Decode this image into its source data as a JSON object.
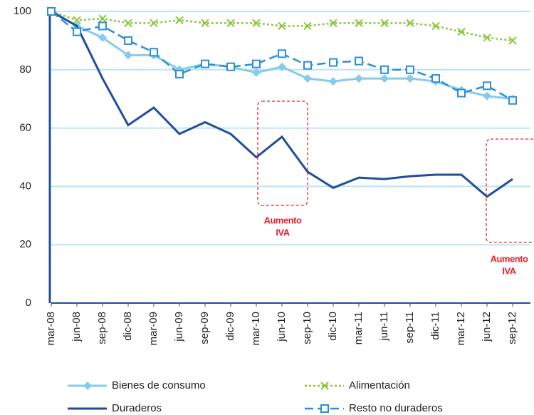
{
  "chart_data": {
    "type": "line",
    "categories": [
      "mar-08",
      "jun-08",
      "sep-08",
      "dic-08",
      "mar-09",
      "jun-09",
      "sep-09",
      "dic-09",
      "mar-10",
      "jun-10",
      "sep-10",
      "dic-10",
      "mar-11",
      "jun-11",
      "sep-11",
      "dic-11",
      "mar-12",
      "jun-12",
      "sep-12"
    ],
    "series": [
      {
        "name": "Bienes de consumo",
        "color": "#84cbec",
        "marker": "diamond",
        "dash": false,
        "values": [
          100,
          95,
          91,
          85,
          85,
          80,
          82,
          81,
          79,
          81,
          77,
          76,
          77,
          77,
          77,
          76,
          73,
          71,
          70
        ]
      },
      {
        "name": "Alimentación",
        "color": "#8cc63f",
        "marker": "x",
        "dash": true,
        "values": [
          100,
          97,
          97.5,
          96,
          96,
          97,
          96,
          96,
          96,
          95,
          95,
          96,
          96,
          96,
          96,
          95,
          93,
          91,
          90
        ]
      },
      {
        "name": "Duraderos",
        "color": "#1f4e9c",
        "marker": "none",
        "dash": false,
        "values": [
          100,
          95,
          77,
          61,
          67,
          58,
          62,
          58,
          50,
          57,
          45,
          39.5,
          43,
          42.5,
          43.5,
          44,
          44,
          36.5,
          42.5
        ]
      },
      {
        "name": "Resto no duraderos",
        "color": "#2a8fd8",
        "marker": "square",
        "dash": true,
        "values": [
          100,
          93,
          95,
          90,
          86,
          78.5,
          82,
          81,
          82,
          85.5,
          81.5,
          82.5,
          83,
          80,
          80,
          77,
          72,
          74.5,
          69.5
        ]
      }
    ],
    "ylim": [
      0,
      100
    ],
    "yticks": [
      0,
      20,
      40,
      60,
      80,
      100
    ],
    "grid": true,
    "annotations": [
      [
        "Aumento",
        "IVA"
      ],
      [
        "Aumento",
        "IVA"
      ]
    ]
  }
}
